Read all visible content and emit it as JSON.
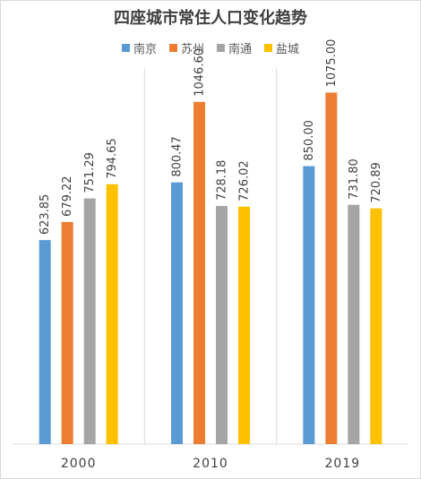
{
  "chart_data": {
    "type": "bar",
    "title": "四座城市常住人口变化趋势",
    "categories": [
      "2000",
      "2010",
      "2019"
    ],
    "series": [
      {
        "name": "南京",
        "color": "#5b9bd5",
        "values": [
          623.85,
          800.47,
          850.0
        ]
      },
      {
        "name": "苏州",
        "color": "#ed7d31",
        "values": [
          679.22,
          1046.6,
          1075.0
        ]
      },
      {
        "name": "南通",
        "color": "#a5a5a5",
        "values": [
          751.29,
          728.18,
          731.8
        ]
      },
      {
        "name": "盐城",
        "color": "#ffc000",
        "values": [
          794.65,
          726.02,
          720.89
        ]
      }
    ],
    "value_labels": [
      [
        "623.85",
        "800.47",
        "850.00"
      ],
      [
        "679.22",
        "1046.60",
        "1075.00"
      ],
      [
        "751.29",
        "728.18",
        "731.80"
      ],
      [
        "794.65",
        "726.02",
        "720.89"
      ]
    ],
    "ylim": [
      0,
      1150
    ],
    "grid": false,
    "category_separators": true,
    "legend_position": "top",
    "xlabel": "",
    "ylabel": ""
  }
}
